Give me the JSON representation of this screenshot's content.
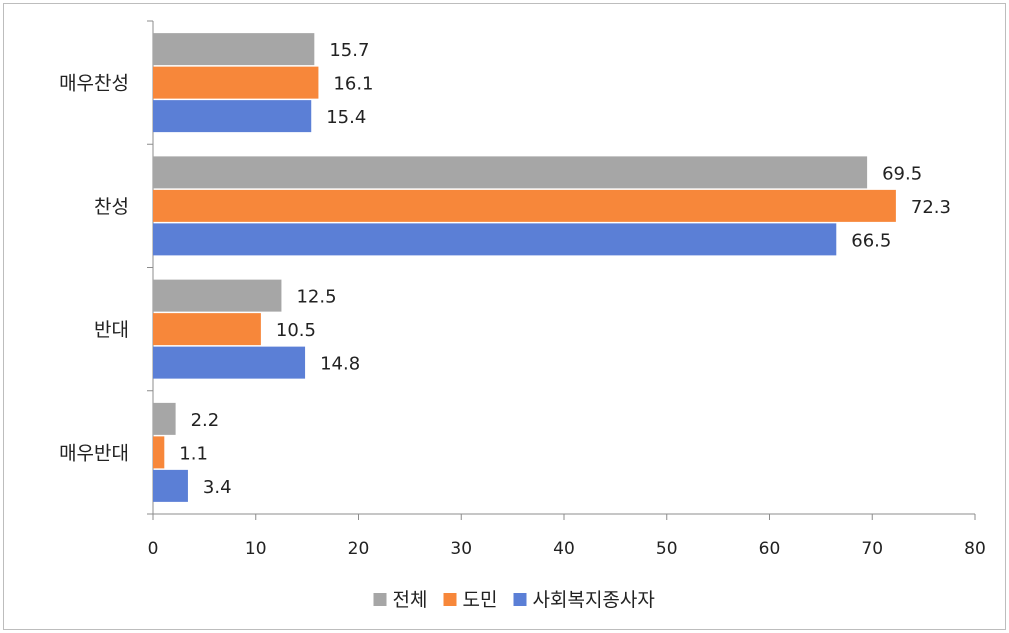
{
  "chart_data": {
    "type": "bar",
    "orientation": "horizontal",
    "categories": [
      "매우찬성",
      "찬성",
      "반대",
      "매우반대"
    ],
    "series": [
      {
        "name": "전체",
        "color": "#a6a6a6",
        "values": [
          15.7,
          69.5,
          12.5,
          2.2
        ]
      },
      {
        "name": "도민",
        "color": "#f7873a",
        "values": [
          16.1,
          72.3,
          10.5,
          1.1
        ]
      },
      {
        "name": "사회복지종사자",
        "color": "#5b7fd6",
        "values": [
          15.4,
          66.5,
          14.8,
          3.4
        ]
      }
    ],
    "xlim": [
      0,
      80
    ],
    "xticks": [
      0,
      10,
      20,
      30,
      40,
      50,
      60,
      70,
      80
    ],
    "grid": false,
    "legend_position": "bottom"
  }
}
